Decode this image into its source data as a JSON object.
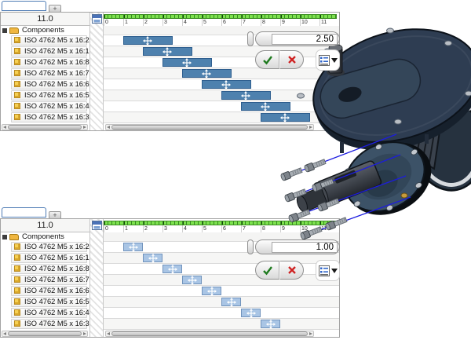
{
  "colors": {
    "bar_primary": "#4E81AE",
    "bar_secondary": "#A9C5E5",
    "ruler_green": "#7CE14D",
    "tab_accent": "#4F7CB5",
    "confirm_green": "#1E7A1E",
    "cancel_red": "#CF2121",
    "trail_blue": "#1C1CE0"
  },
  "storyboards": [
    {
      "add_tab_label": "+",
      "total_time": "11.0",
      "components_label": "Components",
      "ruler_ticks": [
        "0",
        "1",
        "2",
        "3",
        "4",
        "5",
        "6",
        "7",
        "8",
        "9",
        "10",
        "11"
      ],
      "items": [
        "ISO 4762 M5 x 16:2",
        "ISO 4762 M5 x 16:1",
        "ISO 4762 M5 x 16:8",
        "ISO 4762 M5 x 16:7",
        "ISO 4762 M5 x 16:6",
        "ISO 4762 M5 x 16:5",
        "ISO 4762 M5 x 16:4",
        "ISO 4762 M5 x 16:3"
      ],
      "bars": [
        {
          "item": "ISO 4762 M5 x 16:2",
          "start": 1,
          "duration": 2.5
        },
        {
          "item": "ISO 4762 M5 x 16:1",
          "start": 2,
          "duration": 2.5
        },
        {
          "item": "ISO 4762 M5 x 16:8",
          "start": 3,
          "duration": 2.5
        },
        {
          "item": "ISO 4762 M5 x 16:7",
          "start": 4,
          "duration": 2.5
        },
        {
          "item": "ISO 4762 M5 x 16:6",
          "start": 5,
          "duration": 2.5
        },
        {
          "item": "ISO 4762 M5 x 16:5",
          "start": 6,
          "duration": 2.5
        },
        {
          "item": "ISO 4762 M5 x 16:4",
          "start": 7,
          "duration": 2.5
        },
        {
          "item": "ISO 4762 M5 x 16:3",
          "start": 8,
          "duration": 2.5
        }
      ],
      "duration_value": "2.50"
    },
    {
      "add_tab_label": "+",
      "total_time": "11.0",
      "components_label": "Components",
      "ruler_ticks": [
        "0",
        "1",
        "2",
        "3",
        "4",
        "5",
        "6",
        "7",
        "8",
        "9",
        "10",
        "11"
      ],
      "items": [
        "ISO 4762 M5 x 16:2",
        "ISO 4762 M5 x 16:1",
        "ISO 4762 M5 x 16:8",
        "ISO 4762 M5 x 16:7",
        "ISO 4762 M5 x 16:6",
        "ISO 4762 M5 x 16:5",
        "ISO 4762 M5 x 16:4",
        "ISO 4762 M5 x 16:3"
      ],
      "bars": [
        {
          "item": "ISO 4762 M5 x 16:2",
          "start": 1,
          "duration": 1
        },
        {
          "item": "ISO 4762 M5 x 16:1",
          "start": 2,
          "duration": 1
        },
        {
          "item": "ISO 4762 M5 x 16:8",
          "start": 3,
          "duration": 1
        },
        {
          "item": "ISO 4762 M5 x 16:7",
          "start": 4,
          "duration": 1
        },
        {
          "item": "ISO 4762 M5 x 16:6",
          "start": 5,
          "duration": 1
        },
        {
          "item": "ISO 4762 M5 x 16:5",
          "start": 6,
          "duration": 1
        },
        {
          "item": "ISO 4762 M5 x 16:4",
          "start": 7,
          "duration": 1
        },
        {
          "item": "ISO 4762 M5 x 16:3",
          "start": 8,
          "duration": 1
        }
      ],
      "duration_value": "1.00"
    }
  ]
}
